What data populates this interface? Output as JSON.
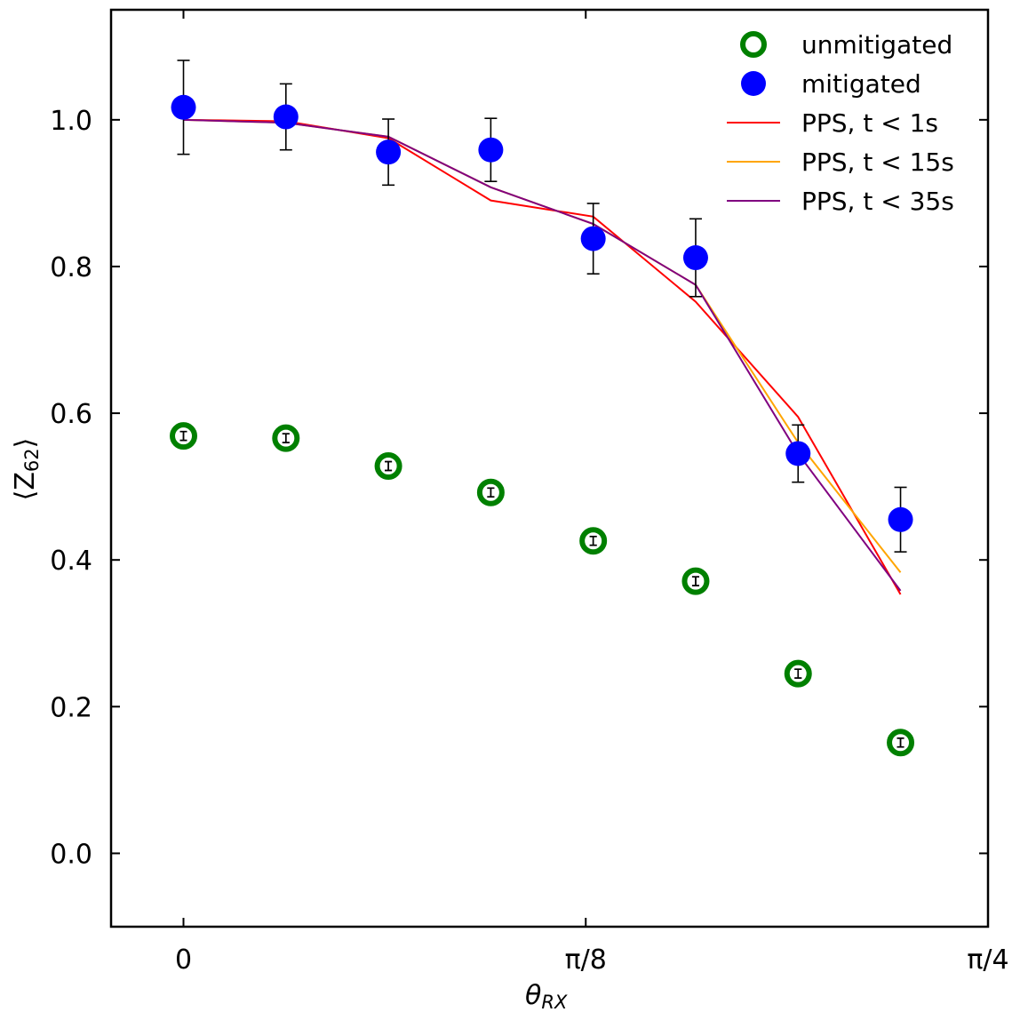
{
  "chart_data": {
    "type": "scatter",
    "title": "",
    "xlabel": "θ",
    "xlabel_sub": "RX",
    "ylabel_open": "⟨Z",
    "ylabel_sub": "62",
    "ylabel_close": "⟩",
    "xlim": [
      -0.0707,
      0.7854
    ],
    "ylim": [
      -0.1,
      1.15
    ],
    "x_ticks": [
      {
        "value": 0,
        "label": "0"
      },
      {
        "value": 0.3927,
        "label": "π/8"
      },
      {
        "value": 0.7854,
        "label": "π/4"
      }
    ],
    "y_ticks": [
      {
        "value": 0.0,
        "label": "0.0"
      },
      {
        "value": 0.2,
        "label": "0.2"
      },
      {
        "value": 0.4,
        "label": "0.4"
      },
      {
        "value": 0.6,
        "label": "0.6"
      },
      {
        "value": 0.8,
        "label": "0.8"
      },
      {
        "value": 1.0,
        "label": "1.0"
      }
    ],
    "x": [
      0.0,
      0.1,
      0.2,
      0.3,
      0.4,
      0.5,
      0.6,
      0.7
    ],
    "legend_position": "top-right",
    "series": [
      {
        "name": "unmitigated",
        "kind": "markers-open",
        "color": "#008000",
        "values": [
          0.569,
          0.566,
          0.528,
          0.492,
          0.426,
          0.371,
          0.245,
          0.151
        ],
        "errors": [
          0.006,
          0.006,
          0.006,
          0.006,
          0.006,
          0.006,
          0.006,
          0.006
        ]
      },
      {
        "name": "mitigated",
        "kind": "markers-filled",
        "color": "#0000ff",
        "values": [
          1.017,
          1.004,
          0.956,
          0.959,
          0.838,
          0.812,
          0.545,
          0.455
        ],
        "errors": [
          0.064,
          0.045,
          0.045,
          0.043,
          0.048,
          0.053,
          0.039,
          0.044
        ]
      },
      {
        "name": "PPS, t < 1s",
        "kind": "line",
        "color": "#ff0000",
        "values": [
          1.0,
          0.998,
          0.975,
          0.89,
          0.868,
          0.752,
          0.595,
          0.353
        ]
      },
      {
        "name": "PPS, t < 15s",
        "kind": "line",
        "color": "#ffa500",
        "values": [
          1.0,
          0.996,
          0.977,
          0.908,
          0.858,
          0.775,
          0.56,
          0.383
        ]
      },
      {
        "name": "PPS, t < 35s",
        "kind": "line",
        "color": "#800080",
        "values": [
          1.0,
          0.996,
          0.977,
          0.908,
          0.858,
          0.775,
          0.545,
          0.358
        ]
      }
    ]
  }
}
